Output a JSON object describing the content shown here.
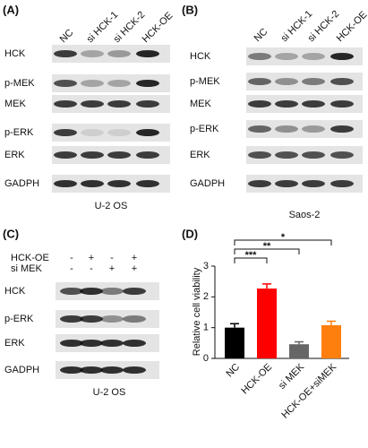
{
  "panels": [
    {
      "label": "(A)",
      "lanes": [
        "NC",
        "si HCK-1",
        "si HCK-2",
        "HCK-OE"
      ],
      "rows": [
        "HCK",
        "p-MEK",
        "MEK",
        "p-ERK",
        "ERK",
        "GADPH"
      ],
      "caption": "U-2 OS"
    },
    {
      "label": "(B)",
      "lanes": [
        "NC",
        "si HCK-1",
        "si HCK-2",
        "HCK-OE"
      ],
      "rows": [
        "HCK",
        "p-MEK",
        "MEK",
        "p-ERK",
        "ERK",
        "GADPH"
      ],
      "caption": "Saos-2"
    },
    {
      "label": "(C)",
      "conditions": [
        {
          "name": "HCK-OE",
          "signs": [
            "-",
            "+",
            "-",
            "+"
          ]
        },
        {
          "name": "si MEK",
          "signs": [
            "-",
            "-",
            "+",
            "+"
          ]
        }
      ],
      "rows": [
        "HCK",
        "p-ERK",
        "ERK",
        "GADPH"
      ],
      "caption": "U-2 OS"
    }
  ],
  "chart_data": {
    "type": "bar",
    "label": "(D)",
    "y_label": "Relative cell viability",
    "categories": [
      "NC",
      "HCK-OE",
      "si MEK",
      "HCK-OE+siMEK"
    ],
    "values": [
      1.0,
      2.27,
      0.46,
      1.08
    ],
    "errors": [
      0.13,
      0.15,
      0.08,
      0.13
    ],
    "colors": [
      "#000000",
      "#ff0000",
      "#666666",
      "#ff7f0e"
    ],
    "ylim": [
      0,
      3
    ],
    "yticks": [
      0,
      1,
      2,
      3
    ],
    "annotations": [
      "***",
      "**",
      "*"
    ]
  }
}
